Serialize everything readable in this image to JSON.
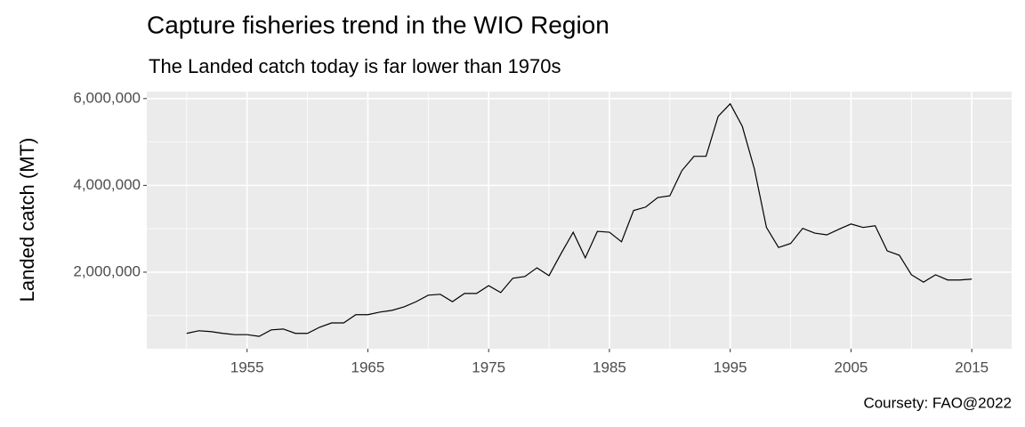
{
  "chart_data": {
    "type": "line",
    "title": "Capture fisheries trend in the WIO Region",
    "subtitle": "The Landed catch today is far lower than 1970s",
    "y_label": "Landed catch (MT)",
    "caption": "Coursety: FAO@2022",
    "x": [
      1950,
      1951,
      1952,
      1953,
      1954,
      1955,
      1956,
      1957,
      1958,
      1959,
      1960,
      1961,
      1962,
      1963,
      1964,
      1965,
      1966,
      1967,
      1968,
      1969,
      1970,
      1971,
      1972,
      1973,
      1974,
      1975,
      1976,
      1977,
      1978,
      1979,
      1980,
      1981,
      1982,
      1983,
      1984,
      1985,
      1986,
      1987,
      1988,
      1989,
      1990,
      1991,
      1992,
      1993,
      1994,
      1995,
      1996,
      1997,
      1998,
      1999,
      2000,
      2001,
      2002,
      2003,
      2004,
      2005,
      2006,
      2007,
      2008,
      2009,
      2010,
      2011,
      2012,
      2013,
      2014,
      2015
    ],
    "values": [
      590000,
      650000,
      630000,
      590000,
      560000,
      560000,
      520000,
      670000,
      690000,
      590000,
      590000,
      730000,
      830000,
      830000,
      1020000,
      1020000,
      1080000,
      1120000,
      1200000,
      1320000,
      1470000,
      1490000,
      1320000,
      1510000,
      1510000,
      1690000,
      1530000,
      1860000,
      1900000,
      2100000,
      1920000,
      2430000,
      2920000,
      2330000,
      2940000,
      2920000,
      2700000,
      3420000,
      3500000,
      3720000,
      3760000,
      4340000,
      4670000,
      4670000,
      5590000,
      5880000,
      5360000,
      4380000,
      3030000,
      2570000,
      2660000,
      3010000,
      2900000,
      2860000,
      2990000,
      3110000,
      3030000,
      3070000,
      2490000,
      2390000,
      1940000,
      1770000,
      1940000,
      1820000,
      1820000,
      1840000
    ],
    "color": "#000000",
    "xlim": [
      1946.7,
      2018.3
    ],
    "ylim": [
      236000,
      6160000
    ],
    "xticks": [
      1955,
      1965,
      1975,
      1985,
      1995,
      2005,
      2015
    ],
    "yticks": [
      {
        "value": 2000000,
        "label": "2,000,000"
      },
      {
        "value": 4000000,
        "label": "4,000,000"
      },
      {
        "value": 6000000,
        "label": "6,000,000"
      }
    ],
    "x_minor_grid": [
      1950,
      1960,
      1970,
      1980,
      1990,
      2000,
      2010
    ],
    "y_minor_grid": [
      1000000,
      3000000,
      5000000
    ],
    "grid": true
  }
}
